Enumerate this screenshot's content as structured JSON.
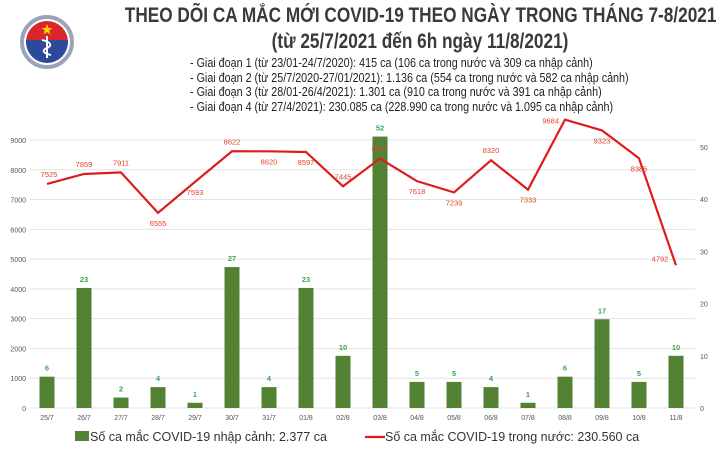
{
  "header": {
    "title": "THEO DÕI CA MẮC MỚI COVID-19 THEO NGÀY TRONG THÁNG 7-8/2021",
    "subtitle": "(từ 25/7/2021 đến 6h ngày 11/8/2021)",
    "logo_text": "BỘ Y TẾ - MINISTRY OF HEALTH",
    "notes": [
      "- Giai đoạn 1 (từ 23/01-24/7/2020): 415 ca (106 ca trong nước và 309 ca nhập cảnh)",
      "- Giai đoạn 2 (từ 25/7/2020-27/01/2021): 1.136 ca (554 ca trong nước và 582 ca nhập cảnh)",
      "- Giai đoạn 3 (từ 28/01-26/4/2021): 1.301 ca (910 ca trong nước và 391 ca nhập cảnh)",
      "- Giai đoạn 4 (từ 27/4/2021): 230.085 ca (228.990 ca trong nước và 1.095 ca nhập cảnh)"
    ]
  },
  "chart_data": {
    "type": "bar+line",
    "categories": [
      "25/7",
      "26/7",
      "27/7",
      "28/7",
      "29/7",
      "30/7",
      "31/7",
      "01/8",
      "02/8",
      "03/8",
      "04/8",
      "05/8",
      "06/8",
      "07/8",
      "08/8",
      "09/8",
      "10/8",
      "11/8"
    ],
    "series": [
      {
        "name": "Số ca mắc COVID-19 nhập cảnh: 2.377 ca",
        "type": "bar",
        "axis": "right",
        "color": "#548235",
        "values": [
          6,
          23,
          2,
          4,
          1,
          27,
          4,
          23,
          10,
          52,
          5,
          5,
          4,
          1,
          6,
          17,
          5,
          10
        ]
      },
      {
        "name": "Số ca mắc COVID-19 trong nước: 230.560 ca",
        "type": "line",
        "axis": "left",
        "color": "#e01b1b",
        "values": [
          7525,
          7859,
          7911,
          6555,
          7593,
          8622,
          8620,
          8597,
          7445,
          8377,
          7618,
          7239,
          8320,
          7333,
          9684,
          9323,
          8385,
          4792
        ]
      }
    ],
    "left_axis": {
      "ticks": [
        0,
        1000,
        2000,
        3000,
        4000,
        5000,
        6000,
        7000,
        8000,
        9000
      ],
      "ylim": [
        0,
        9000
      ]
    },
    "right_axis": {
      "ticks": [
        0,
        10,
        20,
        30,
        40,
        50
      ],
      "ylim": [
        0,
        50
      ]
    },
    "grid": true,
    "legend_placement": "bottom",
    "label_colors": {
      "bar": "#3aa655",
      "line": "#e0452b"
    }
  }
}
